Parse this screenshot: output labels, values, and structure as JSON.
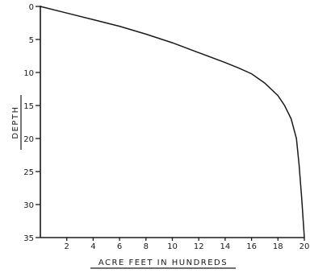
{
  "chart_data": {
    "type": "line",
    "title": "",
    "xlabel": "ACRE FEET IN HUNDREDS",
    "ylabel": "DEPTH",
    "xlim": [
      0,
      20
    ],
    "ylim": [
      0,
      35
    ],
    "y_inverted": true,
    "grid": false,
    "legend": "none",
    "x_ticks": [
      2,
      4,
      6,
      8,
      10,
      12,
      14,
      16,
      18,
      20
    ],
    "y_ticks": [
      0,
      5,
      10,
      15,
      20,
      25,
      30,
      35
    ],
    "series": [
      {
        "x": [
          0,
          2,
          4,
          6,
          8,
          10,
          12,
          14,
          15,
          16,
          17,
          18,
          18.5,
          19,
          19.4,
          19.6,
          19.8,
          20
        ],
        "y": [
          0,
          1,
          2,
          3,
          4.2,
          5.5,
          7,
          8.5,
          9.3,
          10.2,
          11.6,
          13.5,
          15,
          17,
          20,
          24,
          29,
          35
        ]
      }
    ]
  }
}
